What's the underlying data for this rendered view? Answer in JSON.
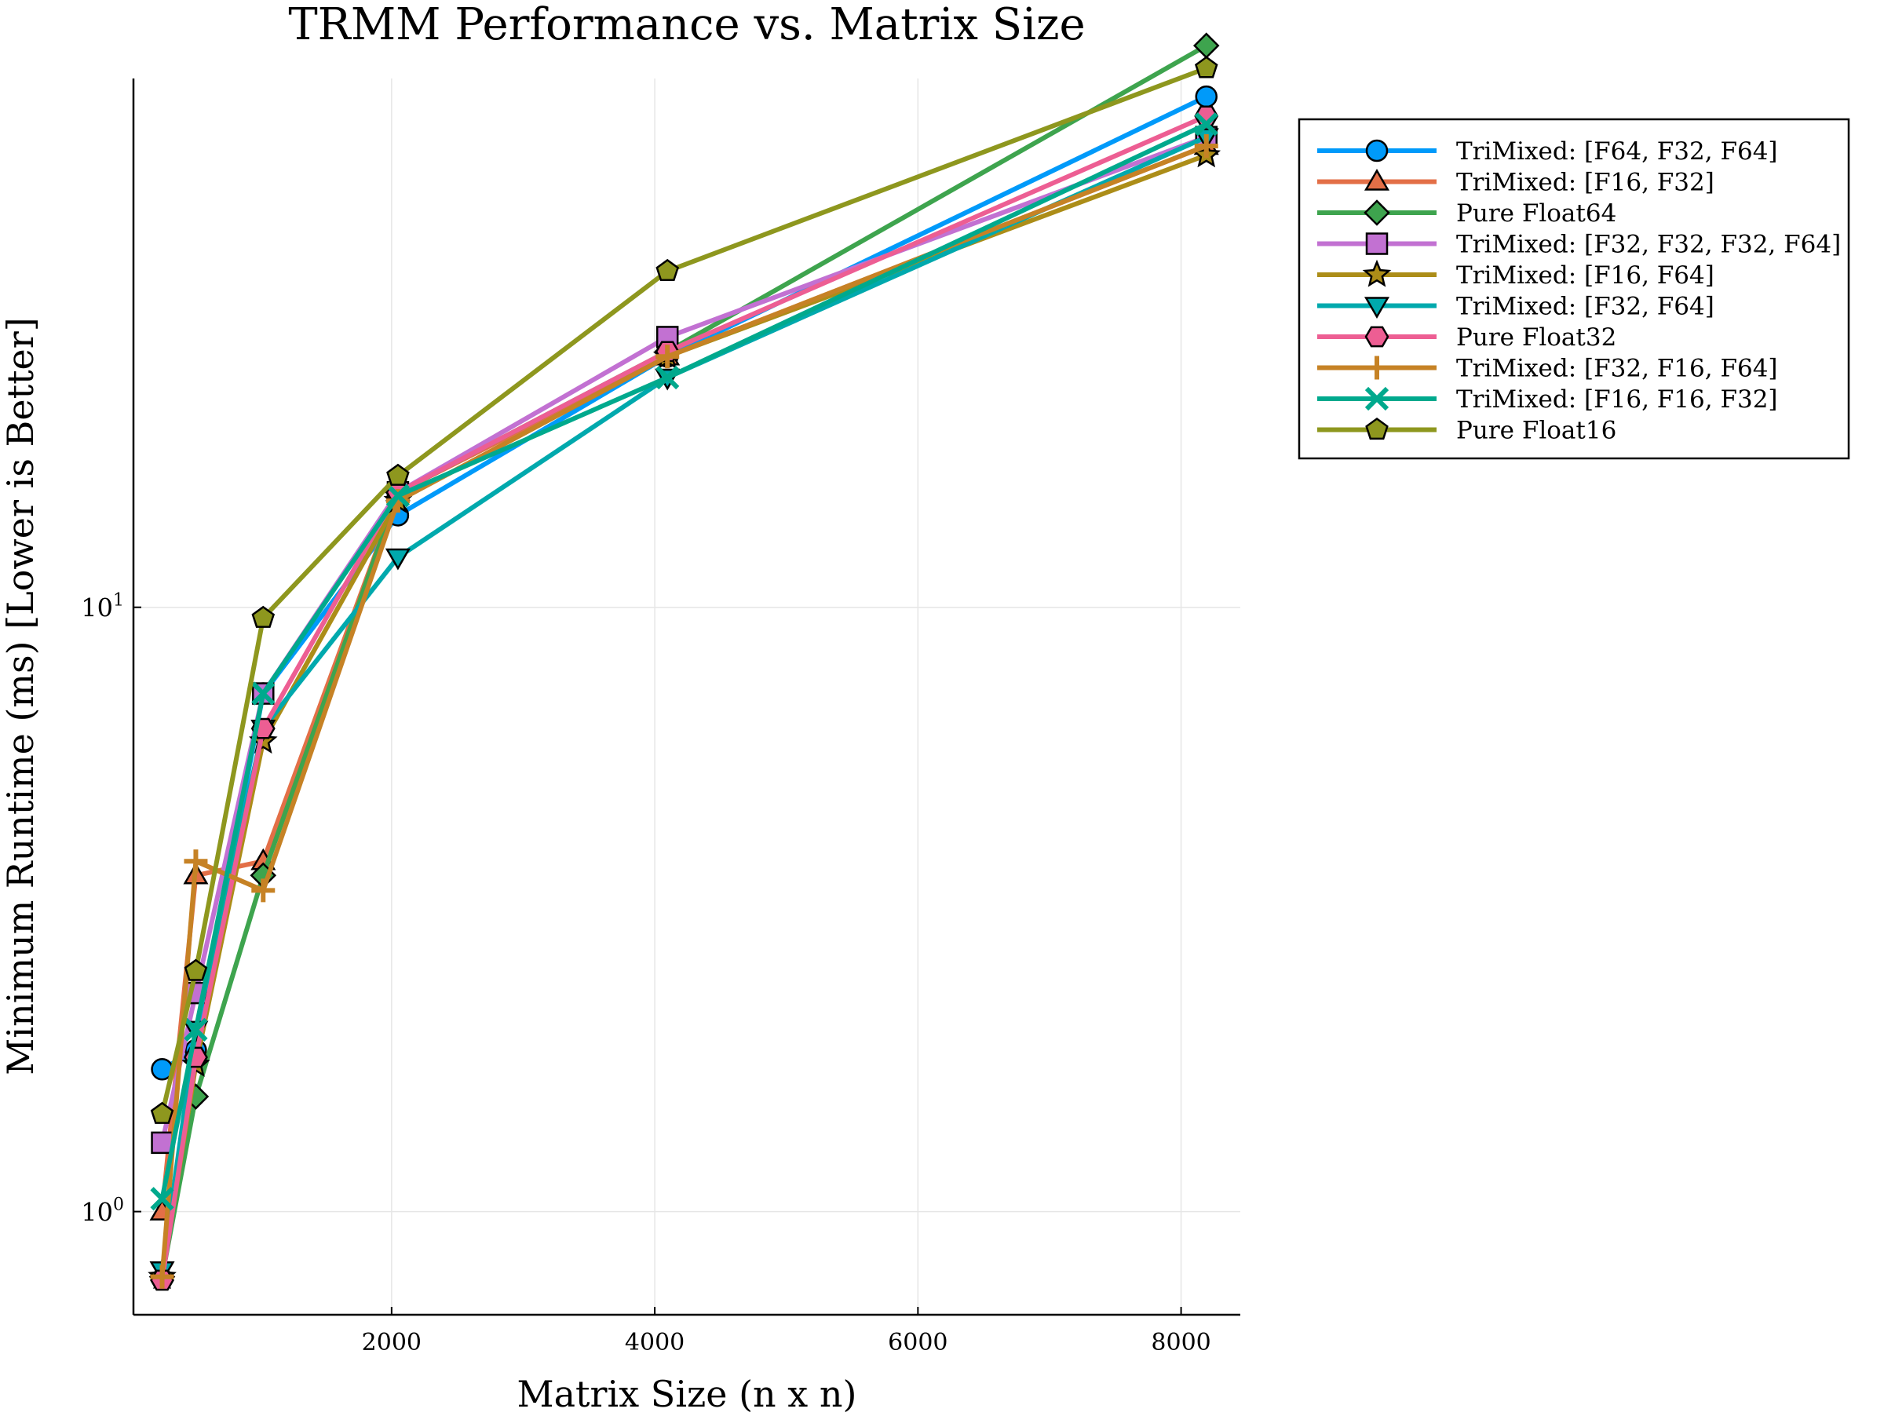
{
  "chart_data": {
    "type": "line",
    "title": "TRMM Performance vs. Matrix Size",
    "xlabel": "Matrix Size (n x n)",
    "ylabel": "Minimum Runtime (ms) [Lower is Better]",
    "x": [
      256,
      512,
      1024,
      2048,
      4096,
      8192
    ],
    "xlim": [
      38,
      8450
    ],
    "ylim": [
      0.675,
      75
    ],
    "yscale": "log",
    "grid": true,
    "legend_position": "top-right-outside",
    "x_ticks": [
      {
        "value": 2000,
        "label": "2000"
      },
      {
        "value": 4000,
        "label": "4000"
      },
      {
        "value": 6000,
        "label": "6000"
      },
      {
        "value": 8000,
        "label": "8000"
      }
    ],
    "y_ticks": [
      {
        "value": 1,
        "base": "10",
        "exp": "0"
      },
      {
        "value": 10,
        "base": "10",
        "exp": "1"
      }
    ],
    "series": [
      {
        "name": "TriMixed: [F64, F32, F64]",
        "color": "#009AFA",
        "marker": "circle",
        "values": [
          1.72,
          1.85,
          7.2,
          14.2,
          26.0,
          70.0
        ]
      },
      {
        "name": "TriMixed: [F16, F32]",
        "color": "#E36F47",
        "marker": "triangle-up",
        "values": [
          1.0,
          3.6,
          3.8,
          15.5,
          26.0,
          58.0
        ]
      },
      {
        "name": "Pure Float64",
        "color": "#3EA44E",
        "marker": "diamond",
        "values": [
          0.78,
          1.55,
          3.6,
          15.5,
          26.5,
          85.0
        ]
      },
      {
        "name": "TriMixed: [F32, F32, F32, F64]",
        "color": "#C271D2",
        "marker": "square",
        "values": [
          1.3,
          2.3,
          7.2,
          15.5,
          28.0,
          60.0
        ]
      },
      {
        "name": "TriMixed: [F16, F64]",
        "color": "#AC8D18",
        "marker": "star",
        "values": [
          0.78,
          1.75,
          6.0,
          15.0,
          26.0,
          56.0
        ]
      },
      {
        "name": "TriMixed: [F32, F64]",
        "color": "#00A9AD",
        "marker": "triangle-down",
        "values": [
          0.8,
          2.0,
          6.3,
          12.1,
          24.0,
          60.0
        ]
      },
      {
        "name": "Pure Float32",
        "color": "#ED5E93",
        "marker": "hexagon",
        "values": [
          0.77,
          1.8,
          6.3,
          15.5,
          26.5,
          65.0
        ]
      },
      {
        "name": "TriMixed: [F32, F16, F64]",
        "color": "#C68225",
        "marker": "cross",
        "values": [
          0.78,
          3.8,
          3.4,
          15.0,
          26.0,
          58.0
        ]
      },
      {
        "name": "TriMixed: [F16, F16, F32]",
        "color": "#00A98D",
        "marker": "x",
        "values": [
          1.05,
          2.0,
          7.2,
          15.3,
          24.0,
          63.0
        ]
      },
      {
        "name": "Pure Float16",
        "color": "#8E971E",
        "marker": "pentagon",
        "values": [
          1.45,
          2.5,
          9.6,
          16.5,
          36.0,
          78.0
        ]
      }
    ]
  }
}
